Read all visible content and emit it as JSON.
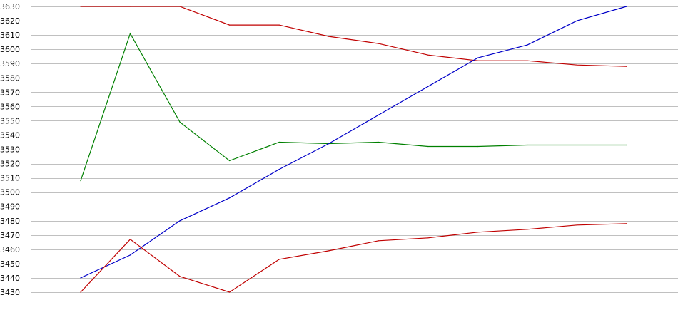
{
  "chart_data": {
    "type": "line",
    "title": "",
    "xlabel": "",
    "ylabel": "",
    "ylim": [
      3430,
      3630
    ],
    "y_ticks": [
      3630,
      3620,
      3610,
      3600,
      3590,
      3580,
      3570,
      3560,
      3550,
      3540,
      3530,
      3520,
      3510,
      3500,
      3490,
      3480,
      3470,
      3460,
      3450,
      3440,
      3430
    ],
    "x": [
      1,
      2,
      3,
      4,
      5,
      6,
      7,
      8,
      9,
      10,
      11,
      12
    ],
    "grid": "horizontal",
    "legend": "none",
    "series": [
      {
        "color": "#c00000",
        "values": [
          3630,
          3630,
          3630,
          3617,
          3617,
          3609,
          3604,
          3596,
          3592,
          3592,
          3589,
          3588
        ]
      },
      {
        "color": "#008000",
        "values": [
          3508,
          3611,
          3549,
          3522,
          3535,
          3534,
          3535,
          3532,
          3532,
          3533,
          3533,
          3533
        ]
      },
      {
        "color": "#0000c8",
        "values": [
          3440,
          3456,
          3480,
          3496,
          3516,
          3534,
          3554,
          3574,
          3594,
          3603,
          3620,
          3630
        ]
      },
      {
        "color": "#c00000",
        "values": [
          3430,
          3467,
          3441,
          3430,
          3453,
          3459,
          3466,
          3468,
          3472,
          3474,
          3477,
          3478
        ]
      }
    ]
  }
}
